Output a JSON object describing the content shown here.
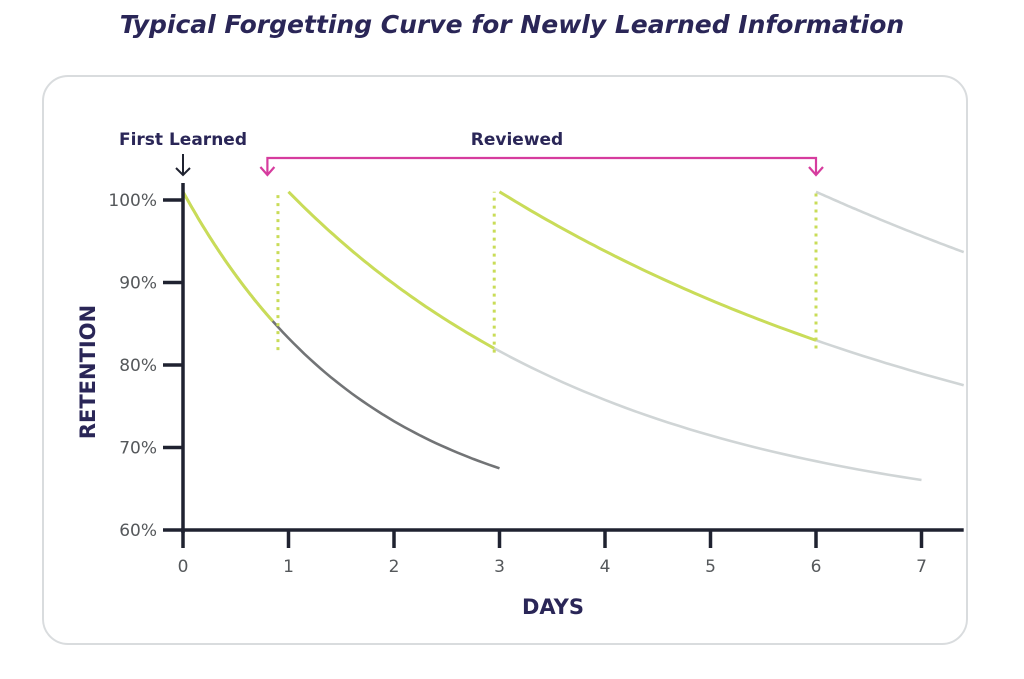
{
  "chart_data": {
    "type": "line",
    "title": "Typical Forgetting Curve for Newly Learned Information",
    "xlabel": "DAYS",
    "ylabel": "RETENTION",
    "xlim": [
      0,
      7.4
    ],
    "ylim": [
      60,
      100
    ],
    "x_ticks": [
      0,
      1,
      2,
      3,
      4,
      5,
      6,
      7
    ],
    "y_ticks": [
      60,
      70,
      80,
      90,
      100
    ],
    "y_tick_labels": [
      "60%",
      "70%",
      "80%",
      "90%",
      "100%"
    ],
    "grid": false,
    "annotations": {
      "first_learned": {
        "text": "First Learned",
        "day": 0
      },
      "reviewed": {
        "text": "Reviewed",
        "from_day": 0.8,
        "to_day": 6
      }
    },
    "colors": {
      "initial": "#727476",
      "review": "#c9dc58",
      "projected": "#d0d5d6",
      "marker": "#c9dc58",
      "bracket": "#d63c9e",
      "axis": "#1f2230"
    },
    "series": [
      {
        "role": "initial",
        "start": 0,
        "end": 3,
        "start_value": 101,
        "rate": 0.21
      },
      {
        "role": "projected",
        "start": 1,
        "end": 7,
        "start_value": 101,
        "rate": 0.118
      },
      {
        "role": "projected",
        "start": 3,
        "end": 7.4,
        "start_value": 101,
        "rate": 0.0714
      },
      {
        "role": "projected",
        "start": 6,
        "end": 7.4,
        "start_value": 101,
        "rate": 0.052
      }
    ],
    "review_segments": [
      {
        "start": 0,
        "end": 0.85,
        "start_value": 101,
        "rate": 0.21
      },
      {
        "start": 1,
        "end": 2.95,
        "start_value": 101,
        "rate": 0.118
      },
      {
        "start": 3,
        "end": 6,
        "start_value": 101,
        "rate": 0.0714
      }
    ],
    "review_markers": [
      {
        "day": 0.9,
        "from": 81.8,
        "to": 101
      },
      {
        "day": 2.95,
        "from": 81.5,
        "to": 101
      },
      {
        "day": 6,
        "from": 82,
        "to": 101
      }
    ]
  }
}
